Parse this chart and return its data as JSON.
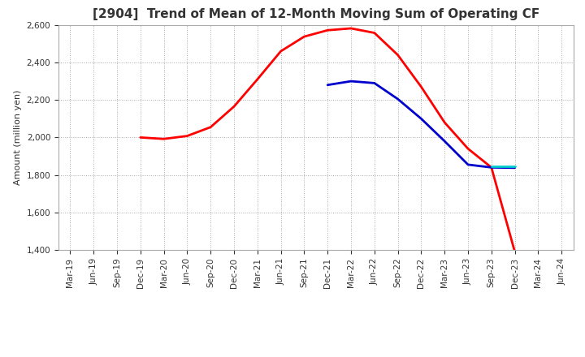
{
  "title": "[2904]  Trend of Mean of 12-Month Moving Sum of Operating CF",
  "ylabel": "Amount (million yen)",
  "ylim": [
    1400,
    2600
  ],
  "yticks": [
    1400,
    1600,
    1800,
    2000,
    2200,
    2400,
    2600
  ],
  "background_color": "#ffffff",
  "grid_color": "#aaaaaa",
  "series": {
    "3 Years": {
      "color": "#ff0000",
      "x": [
        "Dec-19",
        "Mar-20",
        "Jun-20",
        "Sep-20",
        "Dec-20",
        "Mar-21",
        "Jun-21",
        "Sep-21",
        "Dec-21",
        "Mar-22",
        "Jun-22",
        "Sep-22",
        "Dec-22",
        "Mar-23",
        "Jun-23",
        "Sep-23",
        "Dec-23"
      ],
      "y": [
        2000,
        1992,
        2008,
        2055,
        2165,
        2310,
        2460,
        2538,
        2572,
        2582,
        2558,
        2440,
        2270,
        2080,
        1940,
        1840,
        1390
      ]
    },
    "5 Years": {
      "color": "#0000cc",
      "x": [
        "Dec-21",
        "Mar-22",
        "Jun-22",
        "Sep-22",
        "Dec-22",
        "Mar-23",
        "Jun-23",
        "Sep-23",
        "Dec-23"
      ],
      "y": [
        2280,
        2300,
        2290,
        2205,
        2100,
        1980,
        1855,
        1840,
        1838
      ]
    },
    "7 Years": {
      "color": "#00cccc",
      "x": [
        "Sep-23",
        "Dec-23"
      ],
      "y": [
        1845,
        1845
      ]
    },
    "10 Years": {
      "color": "#008800",
      "x": [],
      "y": []
    }
  },
  "x_tick_labels": [
    "Mar-19",
    "Jun-19",
    "Sep-19",
    "Dec-19",
    "Mar-20",
    "Jun-20",
    "Sep-20",
    "Dec-20",
    "Mar-21",
    "Jun-21",
    "Sep-21",
    "Dec-21",
    "Mar-22",
    "Jun-22",
    "Sep-22",
    "Dec-22",
    "Mar-23",
    "Jun-23",
    "Sep-23",
    "Dec-23",
    "Mar-24",
    "Jun-24"
  ],
  "title_fontsize": 11,
  "tick_fontsize": 7.5,
  "legend_fontsize": 9
}
